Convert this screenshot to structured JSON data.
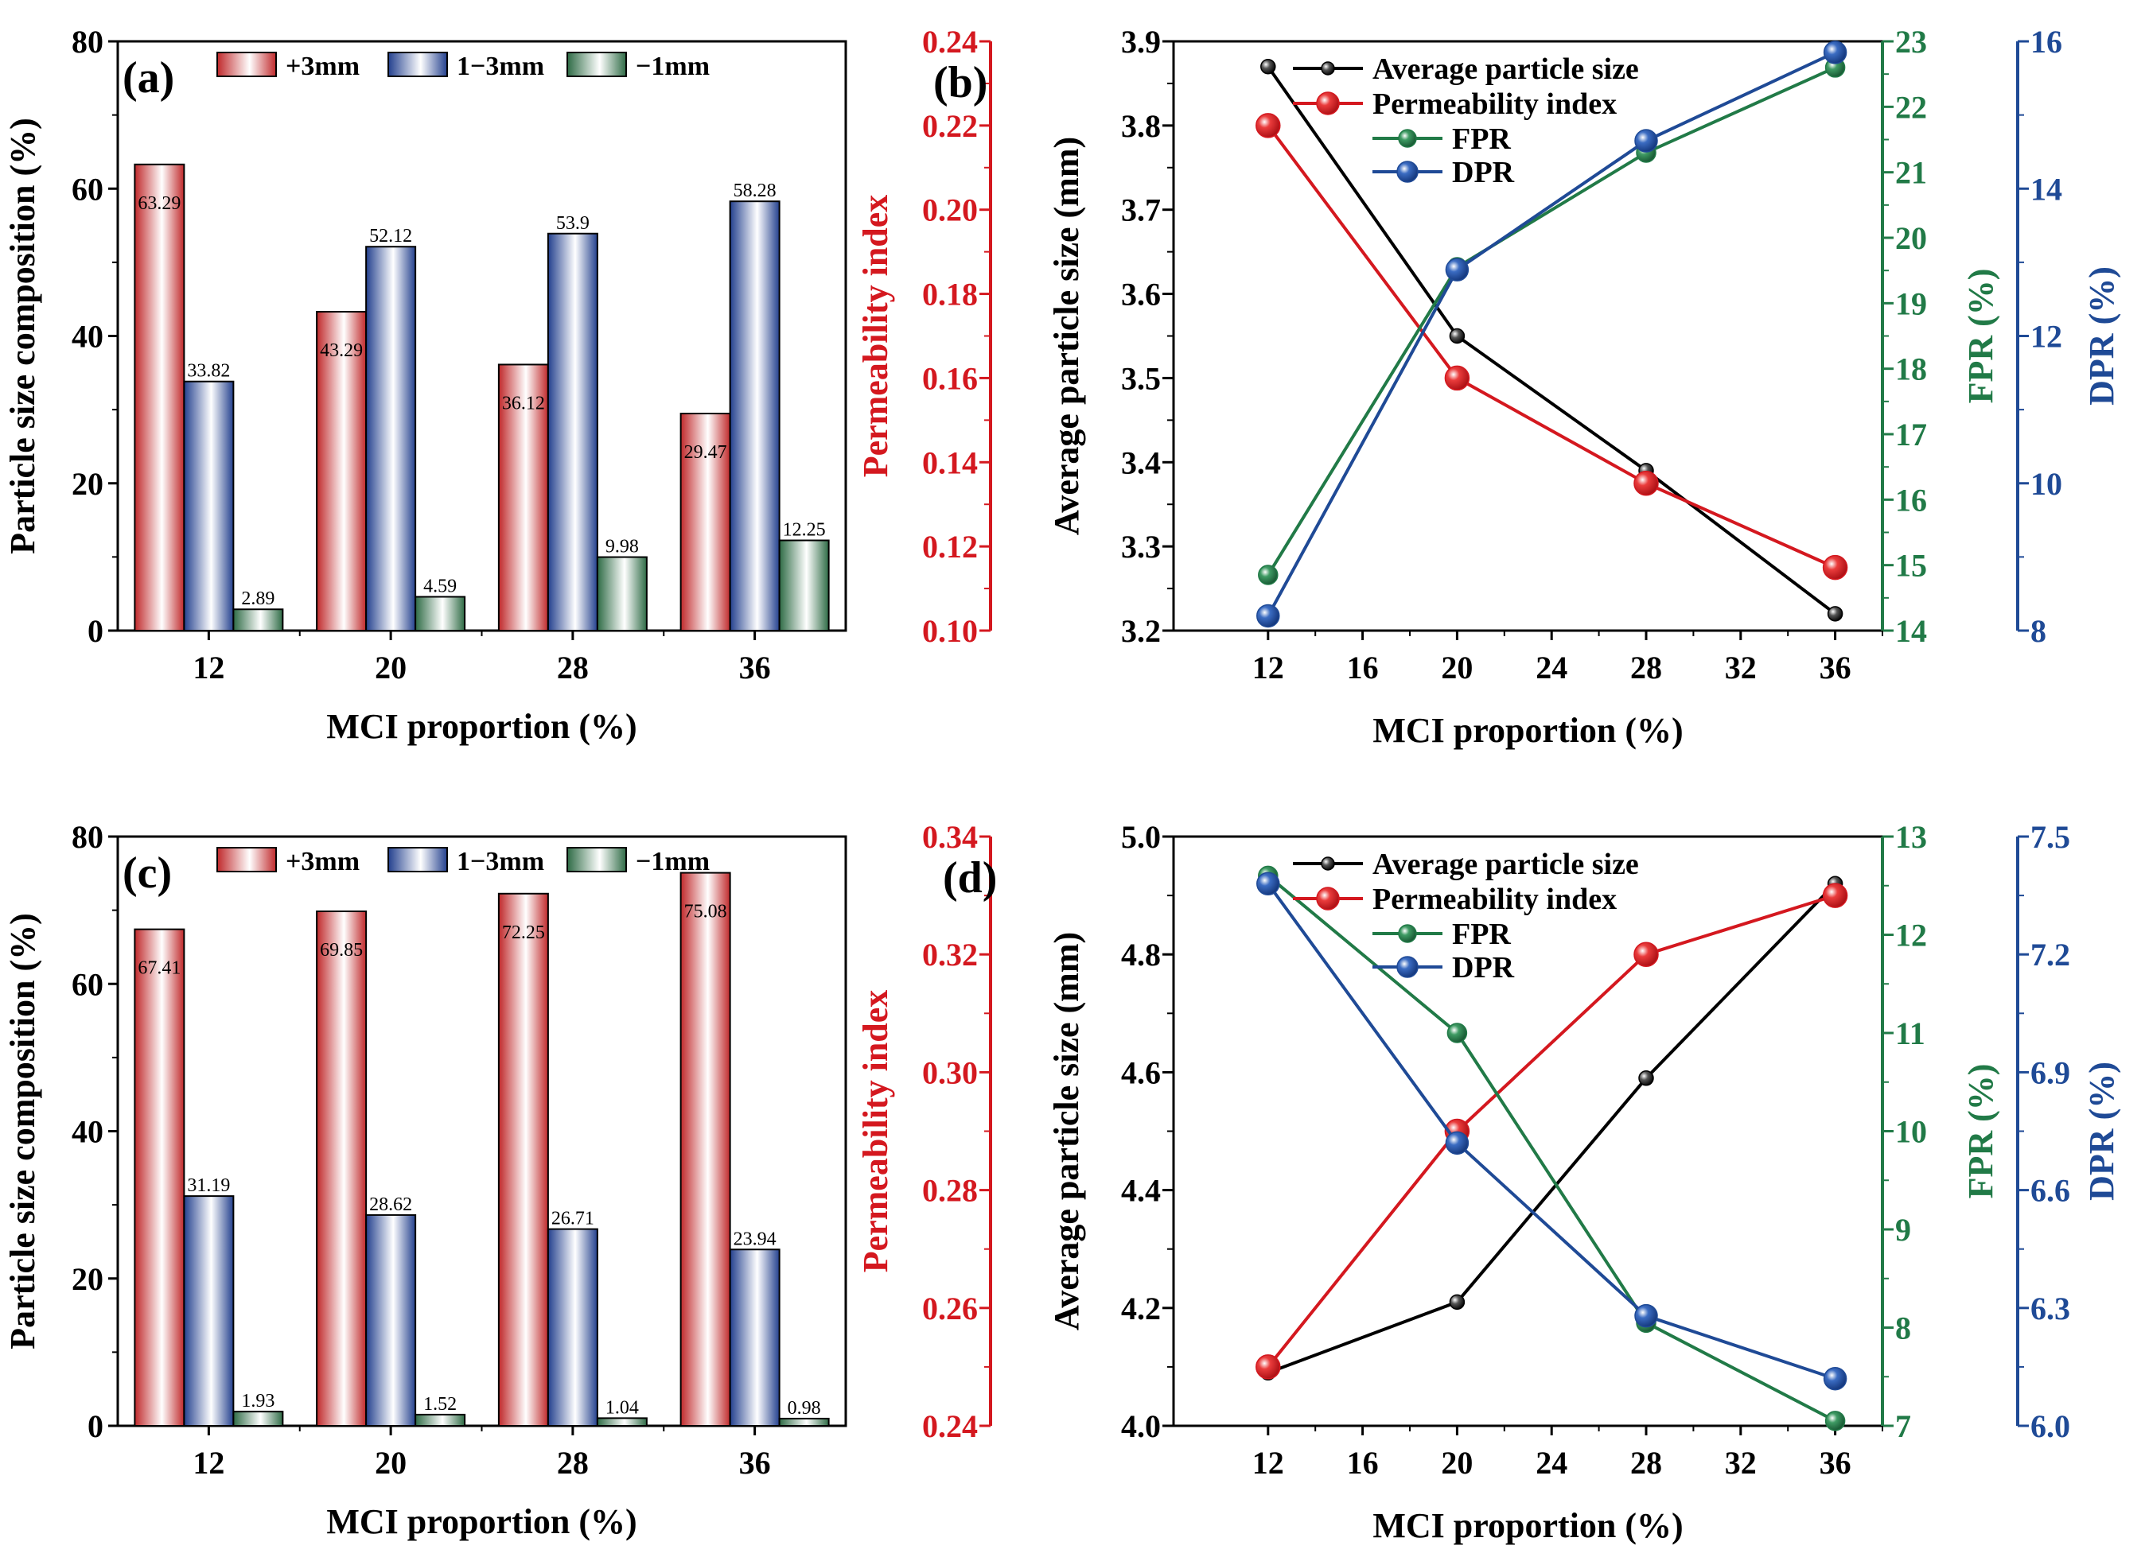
{
  "colors": {
    "plus3": "#c0292b",
    "mid": "#23408e",
    "minus1": "#2e6b45",
    "avg": "#000000",
    "perm": "#d4181f",
    "fpr": "#217a47",
    "dpr": "#1f4a96",
    "frame": "#000000"
  },
  "chart_data": [
    {
      "type": "bar",
      "panel_label": "(a)",
      "categories": [
        "12",
        "20",
        "28",
        "36"
      ],
      "xlabel": "MCI proportion (%)",
      "ylabel": "Particle size composition (%)",
      "ylim": [
        0,
        80
      ],
      "yticks": [
        "0",
        "20",
        "40",
        "60",
        "80"
      ],
      "series": [
        {
          "name": "+3mm",
          "values": [
            63.29,
            43.29,
            36.12,
            29.47
          ],
          "labels": [
            "63.29",
            "43.29",
            "36.12",
            "29.47"
          ]
        },
        {
          "name": "1−3mm",
          "values": [
            33.82,
            52.12,
            53.9,
            58.28
          ],
          "labels": [
            "33.82",
            "52.12",
            "53.9",
            "58.28"
          ]
        },
        {
          "name": "−1mm",
          "values": [
            2.89,
            4.59,
            9.98,
            12.25
          ],
          "labels": [
            "2.89",
            "4.59",
            "9.98",
            "12.25"
          ]
        }
      ]
    },
    {
      "type": "line",
      "panel_label": "(b)",
      "x": [
        12,
        20,
        28,
        36
      ],
      "xlabel": "MCI proportion (%)",
      "xlim": [
        8,
        38
      ],
      "xticks": [
        "12",
        "16",
        "20",
        "24",
        "28",
        "32",
        "36"
      ],
      "axes": {
        "avg": {
          "label": "Average particle size (mm)",
          "lim": [
            3.2,
            3.9
          ],
          "ticks": [
            "3.2",
            "3.3",
            "3.4",
            "3.5",
            "3.6",
            "3.7",
            "3.8",
            "3.9"
          ]
        },
        "perm": {
          "label": "Permeability index",
          "lim": [
            0.1,
            0.24
          ],
          "ticks": [
            "0.10",
            "0.12",
            "0.14",
            "0.16",
            "0.18",
            "0.20",
            "0.22",
            "0.24"
          ]
        },
        "fpr": {
          "label": "FPR (%)",
          "lim": [
            14,
            23
          ],
          "ticks": [
            "14",
            "15",
            "16",
            "17",
            "18",
            "19",
            "20",
            "21",
            "22",
            "23"
          ]
        },
        "dpr": {
          "label": "DPR (%)",
          "lim": [
            8,
            16
          ],
          "ticks": [
            "8",
            "10",
            "12",
            "14",
            "16"
          ]
        }
      },
      "series": [
        {
          "name": "Average particle size",
          "axis": "avg",
          "values": [
            3.87,
            3.55,
            3.39,
            3.22
          ]
        },
        {
          "name": "Permeability index",
          "axis": "perm",
          "values": [
            0.22,
            0.16,
            0.135,
            0.115
          ]
        },
        {
          "name": "FPR",
          "axis": "fpr",
          "values": [
            14.85,
            19.55,
            21.3,
            22.6
          ]
        },
        {
          "name": "DPR",
          "axis": "dpr",
          "values": [
            8.2,
            12.9,
            14.65,
            15.85
          ]
        }
      ]
    },
    {
      "type": "bar",
      "panel_label": "(c)",
      "categories": [
        "12",
        "20",
        "28",
        "36"
      ],
      "xlabel": "MCI proportion (%)",
      "ylabel": "Particle size composition (%)",
      "ylim": [
        0,
        80
      ],
      "yticks": [
        "0",
        "20",
        "40",
        "60",
        "80"
      ],
      "series": [
        {
          "name": "+3mm",
          "values": [
            67.41,
            69.85,
            72.25,
            75.08
          ],
          "labels": [
            "67.41",
            "69.85",
            "72.25",
            "75.08"
          ]
        },
        {
          "name": "1−3mm",
          "values": [
            31.19,
            28.62,
            26.71,
            23.94
          ],
          "labels": [
            "31.19",
            "28.62",
            "26.71",
            "23.94"
          ]
        },
        {
          "name": "−1mm",
          "values": [
            1.93,
            1.52,
            1.04,
            0.98
          ],
          "labels": [
            "1.93",
            "1.52",
            "1.04",
            "0.98"
          ]
        }
      ]
    },
    {
      "type": "line",
      "panel_label": "(d)",
      "x": [
        12,
        20,
        28,
        36
      ],
      "xlabel": "MCI proportion (%)",
      "xlim": [
        8,
        38
      ],
      "xticks": [
        "12",
        "16",
        "20",
        "24",
        "28",
        "32",
        "36"
      ],
      "axes": {
        "avg": {
          "label": "Average particle size (mm)",
          "lim": [
            4.0,
            5.0
          ],
          "ticks": [
            "4.0",
            "4.2",
            "4.4",
            "4.6",
            "4.8",
            "5.0"
          ]
        },
        "perm": {
          "label": "Permeability index",
          "lim": [
            0.24,
            0.34
          ],
          "ticks": [
            "0.24",
            "0.26",
            "0.28",
            "0.30",
            "0.32",
            "0.34"
          ]
        },
        "fpr": {
          "label": "FPR (%)",
          "lim": [
            7,
            13
          ],
          "ticks": [
            "7",
            "8",
            "9",
            "10",
            "11",
            "12",
            "13"
          ]
        },
        "dpr": {
          "label": "DPR (%)",
          "lim": [
            6.0,
            7.5
          ],
          "ticks": [
            "6.0",
            "6.3",
            "6.6",
            "6.9",
            "7.2",
            "7.5"
          ]
        }
      },
      "series": [
        {
          "name": "Average particle size",
          "axis": "avg",
          "values": [
            4.09,
            4.21,
            4.59,
            4.92
          ]
        },
        {
          "name": "Permeability index",
          "axis": "perm",
          "values": [
            0.25,
            0.29,
            0.32,
            0.33
          ]
        },
        {
          "name": "FPR",
          "axis": "fpr",
          "values": [
            12.6,
            11.0,
            8.05,
            7.05
          ]
        },
        {
          "name": "DPR",
          "axis": "dpr",
          "values": [
            7.38,
            6.72,
            6.28,
            6.12
          ]
        }
      ]
    }
  ]
}
